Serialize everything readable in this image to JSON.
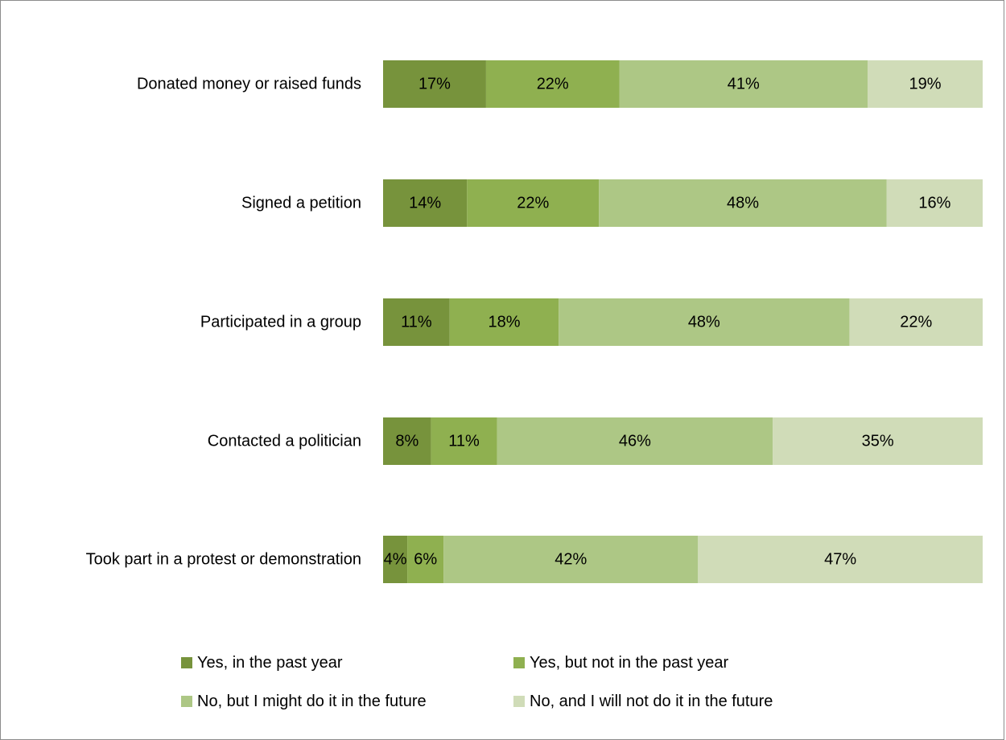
{
  "chart_data": {
    "type": "bar",
    "orientation": "horizontal",
    "stacked": true,
    "percent_stacked": true,
    "categories": [
      "Donated money or raised funds",
      "Signed a petition",
      "Participated in a group",
      "Contacted a politician",
      "Took part in a protest or demonstration"
    ],
    "series": [
      {
        "name": "Yes, in the past year",
        "color": "#77933c",
        "values": [
          17,
          14,
          11,
          8,
          4
        ],
        "labels": [
          "17%",
          "14%",
          "11%",
          "8%",
          "4%"
        ]
      },
      {
        "name": "Yes, but not in the past year",
        "color": "#8fb050",
        "values": [
          22,
          22,
          18,
          11,
          6
        ],
        "labels": [
          "22%",
          "22%",
          "18%",
          "11%",
          "6%"
        ]
      },
      {
        "name": "No, but I might do it in the future",
        "color": "#adc785",
        "values": [
          41,
          48,
          48,
          46,
          42
        ],
        "labels": [
          "41%",
          "48%",
          "48%",
          "46%",
          "42%"
        ]
      },
      {
        "name": "No, and I will not do it in the future",
        "color": "#d0dcb8",
        "values": [
          19,
          16,
          22,
          35,
          47
        ],
        "labels": [
          "19%",
          "16%",
          "22%",
          "35%",
          "47%"
        ]
      }
    ],
    "xlim": [
      0,
      100
    ],
    "grid": false,
    "legend_position": "bottom"
  }
}
